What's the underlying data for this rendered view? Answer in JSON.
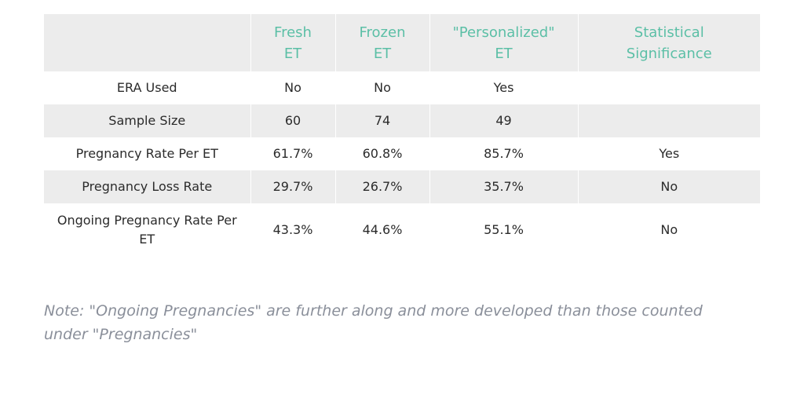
{
  "table": {
    "headers": [
      {
        "lines": [
          "",
          ""
        ]
      },
      {
        "lines": [
          "Fresh",
          "ET"
        ]
      },
      {
        "lines": [
          "Frozen",
          "ET"
        ]
      },
      {
        "lines": [
          "\"Personalized\"",
          "ET"
        ]
      },
      {
        "lines": [
          "Statistical",
          "Significance"
        ]
      }
    ],
    "rows": [
      {
        "label": "ERA Used",
        "fresh": "No",
        "frozen": "No",
        "personalized": "Yes",
        "significance": ""
      },
      {
        "label": "Sample Size",
        "fresh": "60",
        "frozen": "74",
        "personalized": "49",
        "significance": ""
      },
      {
        "label": "Pregnancy Rate Per ET",
        "fresh": "61.7%",
        "frozen": "60.8%",
        "personalized": "85.7%",
        "significance": "Yes"
      },
      {
        "label": "Pregnancy Loss Rate",
        "fresh": "29.7%",
        "frozen": "26.7%",
        "personalized": "35.7%",
        "significance": "No"
      },
      {
        "label": "Ongoing Pregnancy Rate Per ET",
        "fresh": "43.3%",
        "frozen": "44.6%",
        "personalized": "55.1%",
        "significance": "No"
      }
    ]
  },
  "note": "Note: \"Ongoing Pregnancies\" are further along and more developed than those counted under \"Pregnancies\"",
  "colors": {
    "header_text": "#5bbfa6",
    "stripe": "#ececec",
    "note_text": "#8a8f9a"
  }
}
